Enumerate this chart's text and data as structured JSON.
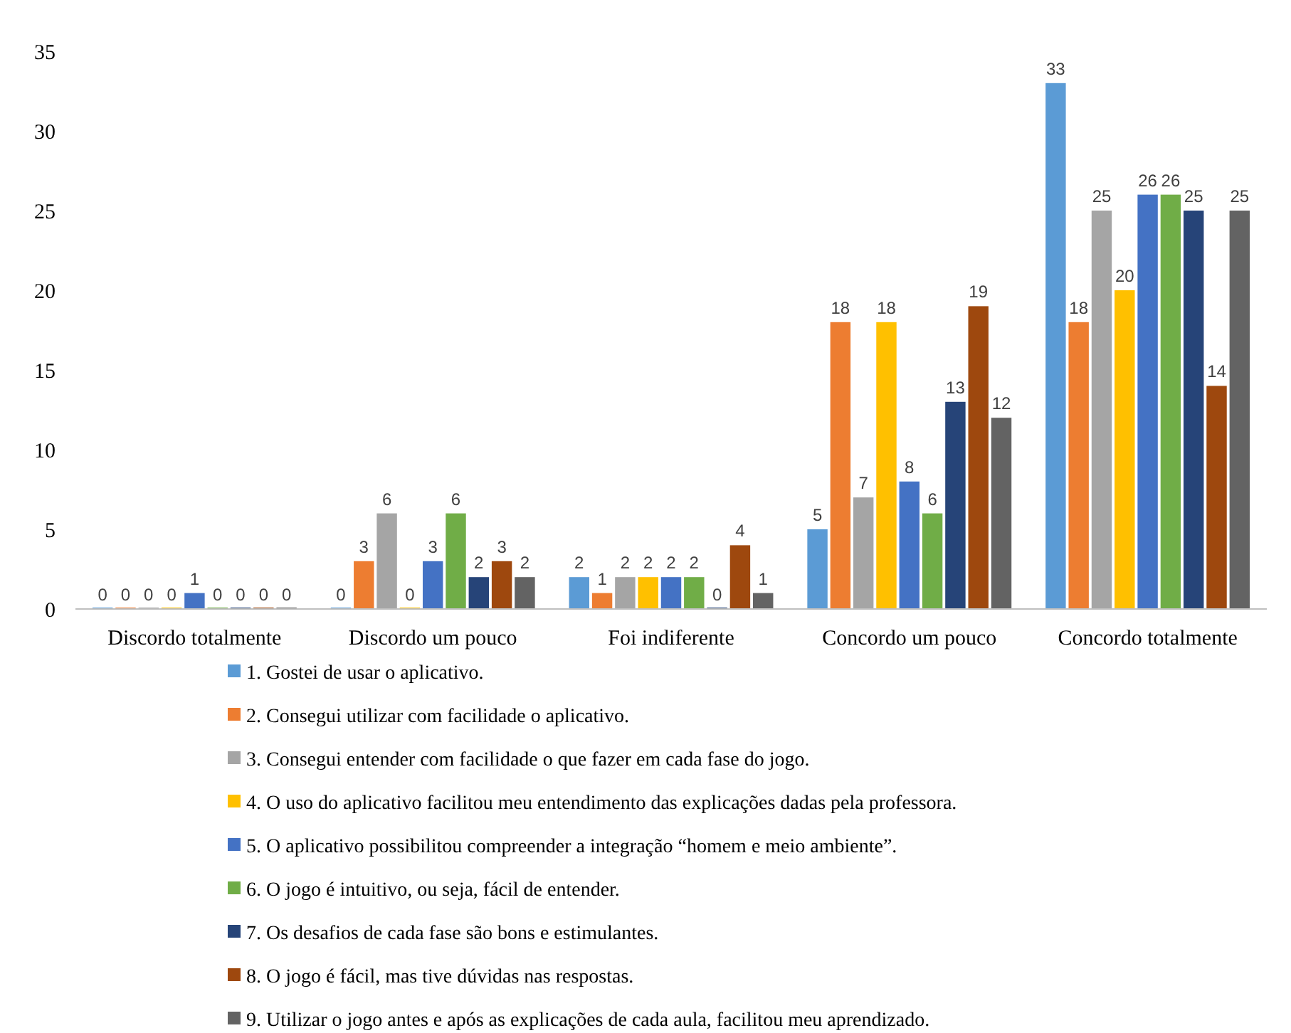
{
  "chart_data": {
    "type": "bar",
    "categories": [
      "Discordo totalmente",
      "Discordo um pouco",
      "Foi indiferente",
      "Concordo um pouco",
      "Concordo totalmente"
    ],
    "series": [
      {
        "name": "1. Gostei de usar o aplicativo.",
        "color": "#5b9bd5",
        "values": [
          0,
          0,
          2,
          5,
          33
        ]
      },
      {
        "name": "2. Consegui utilizar com facilidade o aplicativo.",
        "color": "#ed7d31",
        "values": [
          0,
          3,
          1,
          18,
          18
        ]
      },
      {
        "name": "3. Consegui entender com facilidade o que fazer em cada fase do jogo.",
        "color": "#a5a5a5",
        "values": [
          0,
          6,
          2,
          7,
          25
        ]
      },
      {
        "name": "4. O uso do aplicativo facilitou meu entendimento das explicações dadas pela professora.",
        "color": "#ffc000",
        "values": [
          0,
          0,
          2,
          18,
          20
        ]
      },
      {
        "name": "5. O aplicativo possibilitou compreender a integração “homem e meio ambiente”.",
        "color": "#4472c4",
        "values": [
          1,
          3,
          2,
          8,
          26
        ]
      },
      {
        "name": "6. O jogo é intuitivo, ou seja, fácil de entender.",
        "color": "#70ad47",
        "values": [
          0,
          6,
          2,
          6,
          26
        ]
      },
      {
        "name": "7. Os desafios de cada fase são bons e estimulantes.",
        "color": "#264478",
        "values": [
          0,
          2,
          0,
          13,
          25
        ]
      },
      {
        "name": "8. O jogo é fácil, mas tive dúvidas nas respostas.",
        "color": "#9e480e",
        "values": [
          0,
          3,
          4,
          19,
          14
        ]
      },
      {
        "name": "9. Utilizar o jogo antes e após as explicações de cada aula, facilitou meu aprendizado.",
        "color": "#636363",
        "values": [
          0,
          2,
          1,
          12,
          25
        ]
      }
    ],
    "ylim": [
      0,
      35
    ],
    "yticks": [
      0,
      5,
      10,
      15,
      20,
      25,
      30,
      35
    ],
    "grid": false,
    "legend": "bottom",
    "data_labels": true
  }
}
